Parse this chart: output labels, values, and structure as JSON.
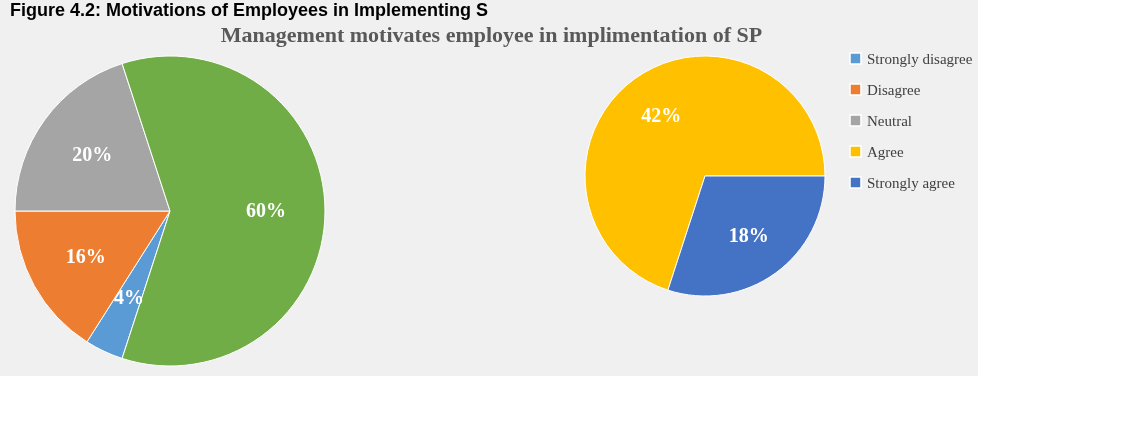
{
  "chart_data": [
    {
      "type": "pie",
      "title": "Management motivates employee in implimentation  of SP",
      "annotations": [
        "Figure 4.2: Motivations of Employees in Implementing S"
      ],
      "categories": [
        "Strongly disagree",
        "Disagree",
        "Neutral",
        null
      ],
      "values": [
        4,
        16,
        20,
        60
      ],
      "colors": [
        "#5b9bd5",
        "#ed7d31",
        "#a5a5a5",
        "#70ad47"
      ],
      "value_labels": [
        "4%",
        "16%",
        "20%",
        "60%"
      ],
      "legend": "right"
    },
    {
      "type": "pie",
      "categories": [
        "Agree",
        "Strongly agree"
      ],
      "values": [
        42,
        18
      ],
      "colors": [
        "#ffc000",
        "#4472c4"
      ],
      "value_labels": [
        "42%",
        "18%"
      ],
      "legend": "right"
    }
  ]
}
